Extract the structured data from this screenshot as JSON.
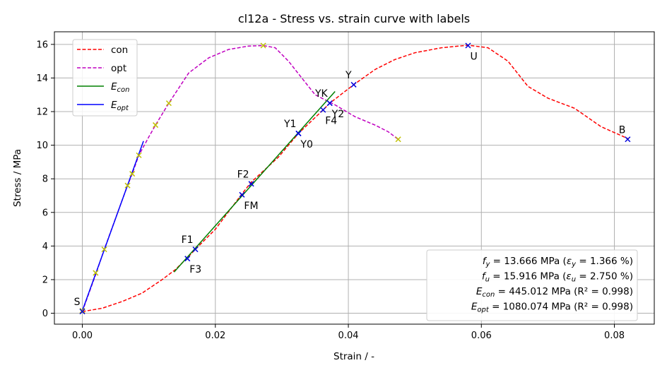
{
  "chart_data": {
    "type": "line",
    "title": "cl12a - Stress vs. strain curve with labels",
    "xlabel": "Strain / -",
    "ylabel": "Stress / MPa",
    "xlim": [
      -0.0042,
      0.086
    ],
    "ylim": [
      -0.65,
      16.75
    ],
    "xticks": [
      0.0,
      0.02,
      0.04,
      0.06,
      0.08
    ],
    "xtick_labels": [
      "0.00",
      "0.02",
      "0.04",
      "0.06",
      "0.08"
    ],
    "yticks": [
      0,
      2,
      4,
      6,
      8,
      10,
      12,
      14,
      16
    ],
    "ytick_labels": [
      "0",
      "2",
      "4",
      "6",
      "8",
      "10",
      "12",
      "14",
      "16"
    ],
    "grid": true,
    "legend_position": "top-left",
    "series": [
      {
        "name": "con",
        "color": "#ff0000",
        "dash": "dashed",
        "x": [
          0.0,
          0.003,
          0.006,
          0.009,
          0.012,
          0.014,
          0.0158,
          0.017,
          0.02,
          0.024,
          0.0254,
          0.0295,
          0.0325,
          0.0362,
          0.0372,
          0.0408,
          0.044,
          0.047,
          0.05,
          0.054,
          0.058,
          0.061,
          0.064,
          0.067,
          0.07,
          0.074,
          0.078,
          0.082
        ],
        "y": [
          0.1,
          0.3,
          0.7,
          1.2,
          2.0,
          2.6,
          3.3,
          3.8,
          5.0,
          7.1,
          7.8,
          9.3,
          10.7,
          12.1,
          12.5,
          13.6,
          14.5,
          15.1,
          15.5,
          15.8,
          15.95,
          15.8,
          15.0,
          13.5,
          12.8,
          12.2,
          11.1,
          10.4
        ]
      },
      {
        "name": "opt",
        "color": "#c000c0",
        "dash": "dashed",
        "x": [
          0.0,
          0.002,
          0.0033,
          0.0055,
          0.0068,
          0.0075,
          0.0085,
          0.01,
          0.011,
          0.013,
          0.016,
          0.019,
          0.022,
          0.025,
          0.0272,
          0.029,
          0.031,
          0.033,
          0.035,
          0.038,
          0.041,
          0.044,
          0.046,
          0.0475
        ],
        "y": [
          0.1,
          2.3,
          3.8,
          6.2,
          7.6,
          8.3,
          9.4,
          10.5,
          11.2,
          12.5,
          14.3,
          15.2,
          15.7,
          15.9,
          15.93,
          15.8,
          15.0,
          14.0,
          13.0,
          12.4,
          11.7,
          11.2,
          10.8,
          10.35
        ]
      },
      {
        "name": "E_con",
        "color": "#008000",
        "dash": "solid",
        "x": [
          0.0138,
          0.038
        ],
        "y": [
          2.45,
          13.2
        ]
      },
      {
        "name": "E_opt",
        "color": "#0000ff",
        "dash": "solid",
        "x": [
          0.0,
          0.0092
        ],
        "y": [
          0.15,
          10.25
        ]
      }
    ],
    "opt_markers": {
      "color": "#c0c000",
      "x": [
        0.0,
        0.002,
        0.0033,
        0.0068,
        0.0075,
        0.0085,
        0.011,
        0.013,
        0.0272,
        0.0475
      ],
      "y": [
        0.15,
        2.4,
        3.8,
        7.6,
        8.3,
        9.4,
        11.2,
        12.5,
        15.93,
        10.35
      ]
    },
    "con_markers": {
      "color": "#0000dd",
      "points": [
        {
          "label": "S",
          "x": 0.0,
          "y": 0.1,
          "pos": "above-left"
        },
        {
          "label": "F1",
          "x": 0.017,
          "y": 3.8,
          "pos": "above-left"
        },
        {
          "label": "F3",
          "x": 0.0158,
          "y": 3.25,
          "pos": "below-right"
        },
        {
          "label": "FM",
          "x": 0.024,
          "y": 7.05,
          "pos": "below-right"
        },
        {
          "label": "F2",
          "x": 0.0254,
          "y": 7.7,
          "pos": "above-left"
        },
        {
          "label": "Y1",
          "x": 0.0325,
          "y": 10.7,
          "pos": "above-left"
        },
        {
          "label": "Y0",
          "x": 0.0325,
          "y": 10.7,
          "pos": "below-right"
        },
        {
          "label": "F4",
          "x": 0.0362,
          "y": 12.1,
          "pos": "below-right"
        },
        {
          "label": "YK",
          "x": 0.0372,
          "y": 12.5,
          "pos": "above-left"
        },
        {
          "label": "Y2",
          "x": 0.0372,
          "y": 12.5,
          "pos": "below-right"
        },
        {
          "label": "Y",
          "x": 0.0408,
          "y": 13.6,
          "pos": "above-left"
        },
        {
          "label": "U",
          "x": 0.058,
          "y": 15.93,
          "pos": "below-right"
        },
        {
          "label": "B",
          "x": 0.082,
          "y": 10.35,
          "pos": "above-left"
        }
      ]
    },
    "legend": [
      {
        "text": "con",
        "color": "#ff0000",
        "dash": "dashed",
        "sub": ""
      },
      {
        "text": "opt",
        "color": "#c000c0",
        "dash": "dashed",
        "sub": ""
      },
      {
        "text": "E",
        "color": "#008000",
        "dash": "solid",
        "sub": "con"
      },
      {
        "text": "E",
        "color": "#0000ff",
        "dash": "solid",
        "sub": "opt"
      }
    ],
    "info_box": [
      {
        "sym": "f",
        "sub": "y",
        "text": " =  13.666 MPa (",
        "sym2": "ε",
        "sub2": "y",
        "text2": " = 1.366 %)"
      },
      {
        "sym": "f",
        "sub": "u",
        "text": " =  15.916 MPa (",
        "sym2": "ε",
        "sub2": "u",
        "text2": " = 2.750 %)"
      },
      {
        "sym": "E",
        "sub": "con",
        "text": " =  445.012 MPa (R² = 0.998)",
        "sym2": "",
        "sub2": "",
        "text2": ""
      },
      {
        "sym": "E",
        "sub": "opt",
        "text": " =  1080.074 MPa (R² = 0.998)",
        "sym2": "",
        "sub2": "",
        "text2": ""
      }
    ]
  }
}
